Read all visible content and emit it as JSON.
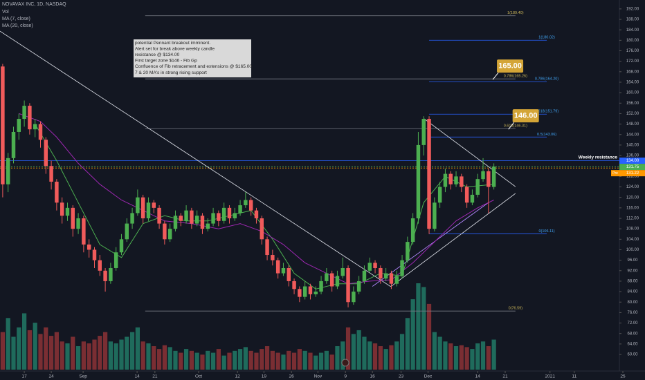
{
  "chart_data": {
    "type": "candlestick",
    "title": "NOVAVAX INC, 1D, NASDAQ",
    "xlim": [
      -0.5,
      119
    ],
    "ylim": [
      54.2,
      195.4
    ],
    "grid": false,
    "up_color": "#4caf50",
    "down_color": "#f15b5b",
    "xticks": [
      {
        "value": 4,
        "label": "17"
      },
      {
        "value": 9,
        "label": "24"
      },
      {
        "value": 14.9,
        "label": "Sep"
      },
      {
        "value": 24.9,
        "label": "14"
      },
      {
        "value": 28.2,
        "label": "21"
      },
      {
        "value": 36.3,
        "label": "Oct"
      },
      {
        "value": 43.5,
        "label": "12"
      },
      {
        "value": 48.4,
        "label": "19"
      },
      {
        "value": 53.5,
        "label": "26"
      },
      {
        "value": 58.4,
        "label": "Nov"
      },
      {
        "value": 63.5,
        "label": "9"
      },
      {
        "value": 68.5,
        "label": "16"
      },
      {
        "value": 73.8,
        "label": "23"
      },
      {
        "value": 78.8,
        "label": "Dec"
      },
      {
        "value": 88,
        "label": "14"
      },
      {
        "value": 93.1,
        "label": "21"
      },
      {
        "value": 101.4,
        "label": "2021"
      },
      {
        "value": 105.9,
        "label": "11"
      },
      {
        "value": 114.9,
        "label": "25"
      }
    ],
    "yticks": [
      {
        "value": 60,
        "label": "60.00"
      },
      {
        "value": 64,
        "label": "64.00"
      },
      {
        "value": 68,
        "label": "68.00"
      },
      {
        "value": 72,
        "label": "72.00"
      },
      {
        "value": 76,
        "label": "76.00"
      },
      {
        "value": 80,
        "label": "80.00"
      },
      {
        "value": 84,
        "label": "84.00"
      },
      {
        "value": 88,
        "label": "88.00"
      },
      {
        "value": 92,
        "label": "92.00"
      },
      {
        "value": 96,
        "label": "96.00"
      },
      {
        "value": 100,
        "label": "100.00"
      },
      {
        "value": 104,
        "label": "104.00"
      },
      {
        "value": 108,
        "label": "108.00"
      },
      {
        "value": 112,
        "label": "112.00"
      },
      {
        "value": 116,
        "label": "116.00"
      },
      {
        "value": 120,
        "label": "120.00"
      },
      {
        "value": 124,
        "label": "124.00"
      },
      {
        "value": 128,
        "label": "128.00"
      },
      {
        "value": 136,
        "label": "136.00"
      },
      {
        "value": 140,
        "label": "140.00"
      },
      {
        "value": 144,
        "label": "144.00"
      },
      {
        "value": 148,
        "label": "148.00"
      },
      {
        "value": 152,
        "label": "152.00"
      },
      {
        "value": 156,
        "label": "156.00"
      },
      {
        "value": 160,
        "label": "160.00"
      },
      {
        "value": 164,
        "label": "164.00"
      },
      {
        "value": 168,
        "label": "168.00"
      },
      {
        "value": 172,
        "label": "172.00"
      },
      {
        "value": 176,
        "label": "176.00"
      },
      {
        "value": 180,
        "label": "180.00"
      },
      {
        "value": 184,
        "label": "184.00"
      },
      {
        "value": 188,
        "label": "188.00"
      },
      {
        "value": 192,
        "label": "192.00"
      }
    ],
    "ohlc": [
      [
        170,
        171,
        120,
        125
      ],
      [
        125,
        137,
        122,
        135
      ],
      [
        135,
        147,
        133,
        145
      ],
      [
        145,
        152,
        142,
        150
      ],
      [
        150,
        157,
        147,
        155
      ],
      [
        155,
        156,
        144,
        146
      ],
      [
        146,
        150,
        143,
        148
      ],
      [
        148,
        149,
        139,
        142
      ],
      [
        142,
        143,
        129,
        132
      ],
      [
        132,
        134,
        123,
        126
      ],
      [
        126,
        127,
        115,
        118
      ],
      [
        118,
        120,
        110,
        113
      ],
      [
        113,
        118,
        111,
        116
      ],
      [
        116,
        117,
        105,
        108
      ],
      [
        108,
        114,
        106,
        112
      ],
      [
        112,
        113,
        99,
        102
      ],
      [
        102,
        104,
        97,
        100
      ],
      [
        100,
        101,
        93,
        96
      ],
      [
        96,
        98,
        90,
        92
      ],
      [
        92,
        93,
        84,
        88
      ],
      [
        88,
        95,
        87,
        93
      ],
      [
        93,
        101,
        92,
        99
      ],
      [
        99,
        106,
        98,
        104
      ],
      [
        104,
        112,
        103,
        110
      ],
      [
        110,
        116,
        108,
        114
      ],
      [
        114,
        123,
        113,
        120
      ],
      [
        120,
        121,
        110,
        112
      ],
      [
        112,
        120,
        111,
        118
      ],
      [
        118,
        119,
        114,
        116
      ],
      [
        116,
        117,
        108,
        110
      ],
      [
        110,
        111,
        102,
        104
      ],
      [
        104,
        110,
        103,
        108
      ],
      [
        108,
        115,
        107,
        113
      ],
      [
        113,
        114,
        109,
        111
      ],
      [
        111,
        117,
        110,
        115
      ],
      [
        115,
        116,
        108,
        110
      ],
      [
        110,
        115,
        109,
        113
      ],
      [
        113,
        114,
        106,
        108
      ],
      [
        108,
        112,
        107,
        110
      ],
      [
        110,
        116,
        109,
        114
      ],
      [
        114,
        115,
        109,
        111
      ],
      [
        111,
        118,
        110,
        116
      ],
      [
        116,
        117,
        110,
        112
      ],
      [
        112,
        116,
        111,
        114
      ],
      [
        114,
        119,
        113,
        117
      ],
      [
        117,
        122,
        116,
        119
      ],
      [
        119,
        120,
        113,
        115
      ],
      [
        115,
        116,
        110,
        112
      ],
      [
        112,
        113,
        102,
        104
      ],
      [
        104,
        105,
        96,
        98
      ],
      [
        98,
        100,
        94,
        96
      ],
      [
        96,
        97,
        89,
        91
      ],
      [
        91,
        95,
        90,
        93
      ],
      [
        93,
        94,
        86,
        88
      ],
      [
        88,
        89,
        83,
        85
      ],
      [
        85,
        86,
        80,
        82
      ],
      [
        82,
        88,
        81,
        86
      ],
      [
        86,
        87,
        81,
        83
      ],
      [
        83,
        86,
        82,
        84
      ],
      [
        84,
        90,
        83,
        88
      ],
      [
        88,
        93,
        87,
        91
      ],
      [
        91,
        92,
        84,
        86
      ],
      [
        86,
        92,
        85,
        90
      ],
      [
        90,
        97,
        89,
        93
      ],
      [
        93,
        94,
        78,
        80
      ],
      [
        80,
        86,
        79,
        84
      ],
      [
        84,
        90,
        83,
        88
      ],
      [
        88,
        94,
        87,
        92
      ],
      [
        92,
        97,
        91,
        95
      ],
      [
        95,
        96,
        91,
        93
      ],
      [
        93,
        94,
        87,
        89
      ],
      [
        89,
        93,
        88,
        91
      ],
      [
        91,
        92,
        85,
        87
      ],
      [
        87,
        92,
        86,
        90
      ],
      [
        90,
        98,
        89,
        96
      ],
      [
        96,
        105,
        95,
        103
      ],
      [
        103,
        114,
        102,
        112
      ],
      [
        112,
        145,
        110,
        140
      ],
      [
        140,
        151,
        136,
        150
      ],
      [
        150,
        151,
        106,
        108
      ],
      [
        108,
        120,
        107,
        118
      ],
      [
        118,
        126,
        116,
        124
      ],
      [
        124,
        131,
        122,
        129
      ],
      [
        129,
        130,
        123,
        125
      ],
      [
        125,
        130,
        124,
        128
      ],
      [
        128,
        129,
        122,
        124
      ],
      [
        124,
        125,
        116,
        118
      ],
      [
        118,
        123,
        117,
        121
      ],
      [
        121,
        129,
        120,
        127
      ],
      [
        127,
        135,
        126,
        130
      ],
      [
        130,
        131,
        114,
        124
      ],
      [
        124,
        133,
        123,
        131.75
      ]
    ],
    "volume": {
      "name": "Vol",
      "values": [
        40,
        55,
        35,
        45,
        60,
        42,
        50,
        38,
        45,
        36,
        40,
        30,
        28,
        35,
        25,
        30,
        28,
        32,
        36,
        40,
        30,
        28,
        32,
        35,
        40,
        45,
        30,
        28,
        25,
        22,
        26,
        24,
        20,
        18,
        22,
        20,
        18,
        16,
        20,
        18,
        22,
        15,
        18,
        20,
        22,
        24,
        20,
        18,
        22,
        25,
        20,
        18,
        16,
        20,
        18,
        22,
        20,
        18,
        15,
        18,
        20,
        16,
        25,
        30,
        45,
        38,
        42,
        35,
        30,
        28,
        25,
        22,
        26,
        30,
        38,
        55,
        75,
        92,
        88,
        70,
        40,
        35,
        30,
        28,
        25,
        26,
        24,
        22,
        28,
        30,
        25,
        32
      ]
    },
    "series": [
      {
        "name": "MA (7, close)",
        "color": "#4caf50",
        "x": [
          6,
          10,
          14,
          18,
          22,
          26,
          30,
          34,
          38,
          42,
          46,
          50,
          54,
          58,
          62,
          66,
          70,
          74,
          78,
          82,
          86,
          91
        ],
        "values": [
          148,
          134,
          118,
          102,
          97,
          110,
          113,
          111,
          111,
          113,
          115,
          104,
          91,
          85,
          87,
          87,
          91,
          90,
          118,
          128,
          124,
          125
        ]
      },
      {
        "name": "MA (20, close)",
        "color": "#9c27b0",
        "x": [
          3,
          7,
          10,
          14,
          18,
          22,
          26,
          30,
          35,
          40,
          44,
          48,
          52,
          56,
          60,
          64,
          68,
          72,
          76,
          80,
          84,
          88,
          91
        ],
        "values": [
          152,
          149,
          143,
          133,
          125,
          119,
          115,
          111,
          110,
          108,
          110,
          107,
          102,
          95,
          91,
          87,
          88,
          88.5,
          95,
          103,
          111,
          116,
          119
        ]
      }
    ],
    "trendlines": [
      {
        "color": "#d1d4dc",
        "points": [
          [
            -0.5,
            183.5
          ],
          [
            71.9,
            85.9
          ]
        ]
      },
      {
        "color": "#d1d4dc",
        "points": [
          [
            78.1,
            150
          ],
          [
            95,
            124.1
          ]
        ]
      },
      {
        "color": "#d1d4dc",
        "points": [
          [
            71.9,
            85.9
          ],
          [
            95,
            121.5
          ]
        ]
      },
      {
        "color": "#b388ff",
        "points": [
          [
            68.5,
            86
          ],
          [
            90,
            118
          ]
        ]
      }
    ],
    "fib_sets": [
      {
        "color": "#c9b458",
        "line_color": "#787b86",
        "from": 26.4,
        "to": 95,
        "levels": [
          {
            "value": 189.4,
            "label": "1(189.40)"
          },
          {
            "value": 165.26,
            "label": "0.786(165.26)"
          },
          {
            "value": 146.31,
            "label": "0.618(146.31)"
          },
          {
            "value": 76.59,
            "label": "0(76.59)"
          }
        ]
      },
      {
        "color": "#42a5f5",
        "line_color": "#2962ff",
        "from": 79,
        "to": 100.8,
        "levels": [
          {
            "value": 180.02,
            "label": "1(180.02)"
          },
          {
            "value": 164.2,
            "label": "0.786(164.20)"
          },
          {
            "value": 151.79,
            "label": "0.618(151.79)"
          },
          {
            "value": 143.06,
            "label": "0.5(143.06)"
          },
          {
            "value": 106.11,
            "label": "0(106.11)"
          }
        ]
      }
    ],
    "targets": [
      {
        "value": 165,
        "label": "165.00",
        "at": 90.8,
        "color": "#d4a537"
      },
      {
        "value": 146,
        "label": "146.00",
        "at": 93.7,
        "color": "#d4a537"
      }
    ],
    "price_lines": [
      {
        "value": 134,
        "label": "134.00",
        "color": "#2962ff",
        "text": "Weekly resistance"
      },
      {
        "value": 131.75,
        "label": "131.75",
        "color": "#4caf50"
      },
      {
        "value": 131.22,
        "label": "131.22",
        "color": "#ff9800",
        "tag": "Pre"
      }
    ],
    "note": [
      "potential Pennant breakout imminent.",
      "Alert set for break above  weekly candle",
      "resistance @ $134.00",
      "First target zone $146 - Fib Gp",
      "Confluence of Fib retracement and extensions @ $165.00.",
      "7 & 20 MA's in strong rising support"
    ]
  }
}
